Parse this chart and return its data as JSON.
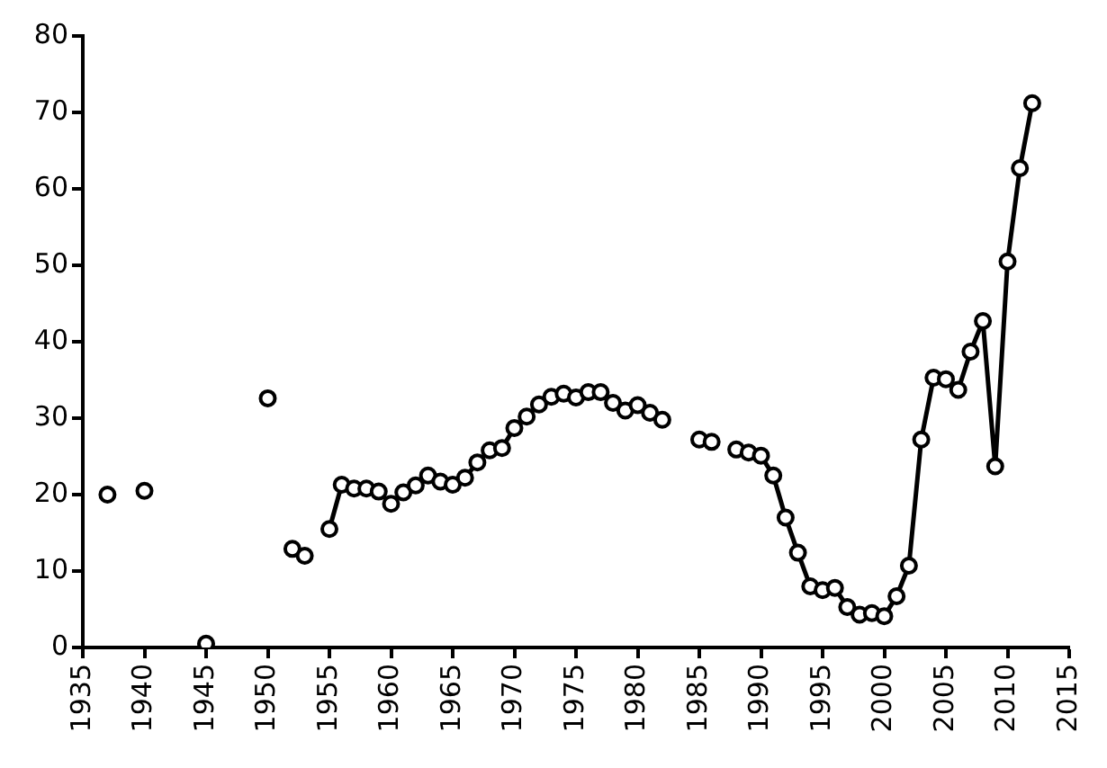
{
  "chart_data": {
    "type": "line",
    "color": "#000000",
    "marker": "circle",
    "line_style": "solid",
    "grid": false,
    "x": [
      1937,
      1938,
      1940,
      1941,
      1945,
      1946,
      1950,
      1951,
      1952,
      1953,
      1954,
      1955,
      1956,
      1957,
      1958,
      1959,
      1960,
      1961,
      1962,
      1963,
      1964,
      1965,
      1966,
      1967,
      1968,
      1969,
      1970,
      1971,
      1972,
      1973,
      1974,
      1975,
      1976,
      1977,
      1978,
      1979,
      1980,
      1981,
      1982,
      1983,
      1985,
      1986,
      1987,
      1988,
      1989,
      1990,
      1991,
      1992,
      1993,
      1994,
      1995,
      1996,
      1997,
      1998,
      1999,
      2000,
      2001,
      2002,
      2003,
      2004,
      2005,
      2006,
      2007,
      2008,
      2009,
      2010,
      2011,
      2012
    ],
    "values": [
      20.0,
      null,
      20.5,
      null,
      0.5,
      null,
      32.6,
      null,
      12.9,
      12.0,
      null,
      15.5,
      21.3,
      20.8,
      20.8,
      20.4,
      18.8,
      20.3,
      21.2,
      22.5,
      21.7,
      21.3,
      22.2,
      24.2,
      25.8,
      26.1,
      28.7,
      30.2,
      31.8,
      32.8,
      33.2,
      32.7,
      33.4,
      33.4,
      32.0,
      31.0,
      31.7,
      30.7,
      29.8,
      null,
      27.2,
      26.9,
      null,
      25.9,
      25.5,
      25.1,
      22.5,
      17.0,
      12.4,
      8.0,
      7.5,
      7.8,
      5.3,
      4.3,
      4.5,
      4.1,
      6.7,
      10.7,
      27.2,
      35.3,
      35.1,
      33.7,
      38.7,
      42.7,
      23.7,
      50.5,
      62.7,
      71.2
    ],
    "xlim": [
      1935,
      2015
    ],
    "xticks": [
      1935,
      1940,
      1945,
      1950,
      1955,
      1960,
      1965,
      1970,
      1975,
      1980,
      1985,
      1990,
      1995,
      2000,
      2005,
      2010,
      2015
    ],
    "ylim": [
      0,
      80
    ],
    "yticks": [
      0,
      10,
      20,
      30,
      40,
      50,
      60,
      70,
      80
    ]
  }
}
